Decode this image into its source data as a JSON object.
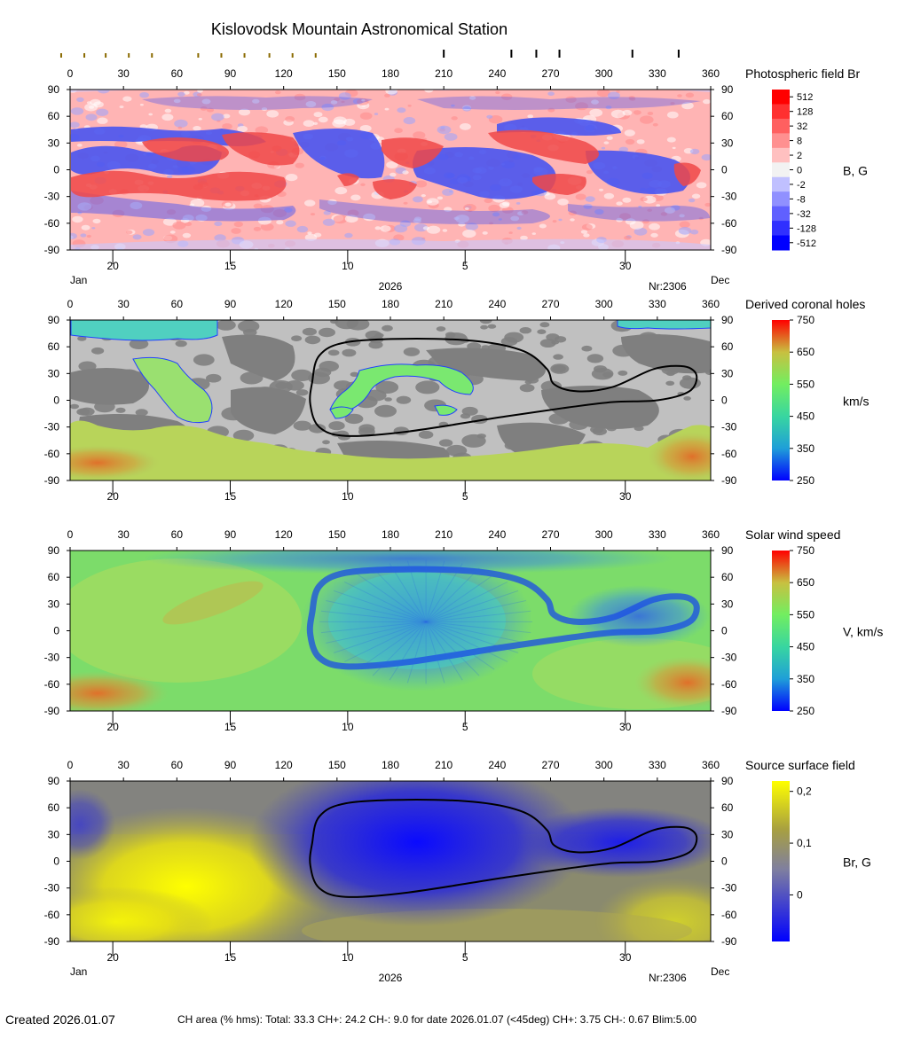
{
  "title": "Kislovodsk Mountain Astronomical Station",
  "footer": {
    "created": "Created  2026.01.07",
    "stats": "CH area (% hms): Total: 33.3 CH+: 24.2   CH-: 9.0 for date 2026.01.07 (<45deg) CH+: 3.75    CH-: 0.67 Blim:5.00"
  },
  "bottom_axis": {
    "month_left": "Jan",
    "month_right": "Dec",
    "year": "2026",
    "rotation": "Nr:2306",
    "date_ticks": [
      {
        "label": "20",
        "longitude": 24
      },
      {
        "label": "15",
        "longitude": 90
      },
      {
        "label": "10",
        "longitude": 156
      },
      {
        "label": "5",
        "longitude": 222
      },
      {
        "label": "30",
        "longitude": 312
      }
    ]
  },
  "top_markers": {
    "small_longitudes": [
      -5,
      8,
      20,
      33,
      46,
      72,
      85,
      98,
      112,
      125,
      138
    ],
    "large_longitudes": [
      210,
      248,
      262,
      275,
      316,
      342
    ]
  },
  "chart_data": [
    {
      "type": "heatmap",
      "name": "Photospheric field Br",
      "colorbar_label": "B, G",
      "colorbar_ticks": [
        "512",
        "128",
        "32",
        "8",
        "2",
        "0",
        "-2",
        "-8",
        "-32",
        "-128",
        "-512"
      ],
      "colors": [
        "#ff0000",
        "#ff3030",
        "#ff6060",
        "#ff9090",
        "#ffc0c0",
        "#f2f2f2",
        "#c0c0ff",
        "#9090ff",
        "#6060ff",
        "#3030ff",
        "#0000ff"
      ],
      "x_ticks": [
        0,
        30,
        60,
        90,
        120,
        150,
        180,
        210,
        240,
        270,
        300,
        330,
        360
      ],
      "y_ticks": [
        90,
        60,
        30,
        0,
        -30,
        -60,
        -90
      ],
      "xlim": [
        0,
        360
      ],
      "ylim": [
        -90,
        90
      ],
      "bottom_axis": "labels"
    },
    {
      "type": "heatmap",
      "name": "Derived coronal holes",
      "colorbar_label": "km/s",
      "colorbar_ticks": [
        "750",
        "650",
        "550",
        "450",
        "350",
        "250"
      ],
      "colorbar_range": [
        250,
        750
      ],
      "x_ticks": [
        0,
        30,
        60,
        90,
        120,
        150,
        180,
        210,
        240,
        270,
        300,
        330,
        360
      ],
      "y_ticks": [
        90,
        60,
        30,
        0,
        -30,
        -60,
        -90
      ],
      "xlim": [
        0,
        360
      ],
      "ylim": [
        -90,
        90
      ],
      "bottom_axis": "dates",
      "background_colors": [
        "#c0c0c0",
        "#7f7f7f"
      ]
    },
    {
      "type": "heatmap",
      "name": "Solar wind speed",
      "colorbar_label": "V, km/s",
      "colorbar_ticks": [
        "750",
        "650",
        "550",
        "450",
        "350",
        "250"
      ],
      "colorbar_range": [
        250,
        750
      ],
      "x_ticks": [
        0,
        30,
        60,
        90,
        120,
        150,
        180,
        210,
        240,
        270,
        300,
        330,
        360
      ],
      "y_ticks": [
        90,
        60,
        30,
        0,
        -30,
        -60,
        -90
      ],
      "xlim": [
        0,
        360
      ],
      "ylim": [
        -90,
        90
      ],
      "bottom_axis": "dates"
    },
    {
      "type": "heatmap",
      "name": "Source surface field",
      "colorbar_label": "Br, G",
      "colorbar_ticks": [
        "0,2",
        "0,1",
        "0"
      ],
      "colorbar_tick_values": [
        0.2,
        0.1,
        0
      ],
      "colorbar_range": [
        -0.09,
        0.22
      ],
      "x_ticks": [
        0,
        30,
        60,
        90,
        120,
        150,
        180,
        210,
        240,
        270,
        300,
        330,
        360
      ],
      "y_ticks": [
        90,
        60,
        30,
        0,
        -30,
        -60,
        -90
      ],
      "xlim": [
        0,
        360
      ],
      "ylim": [
        -90,
        90
      ],
      "bottom_axis": "labels"
    }
  ],
  "neutral_line": {
    "description_points": [
      [
        136,
        20
      ],
      [
        140,
        50
      ],
      [
        155,
        65
      ],
      [
        190,
        69
      ],
      [
        230,
        66
      ],
      [
        255,
        55
      ],
      [
        268,
        35
      ],
      [
        272,
        18
      ],
      [
        285,
        10
      ],
      [
        305,
        15
      ],
      [
        328,
        35
      ],
      [
        345,
        38
      ],
      [
        352,
        28
      ],
      [
        348,
        10
      ],
      [
        330,
        0
      ],
      [
        305,
        -2
      ],
      [
        280,
        -8
      ],
      [
        245,
        -18
      ],
      [
        190,
        -35
      ],
      [
        155,
        -40
      ],
      [
        140,
        -30
      ],
      [
        135,
        -5
      ]
    ]
  }
}
